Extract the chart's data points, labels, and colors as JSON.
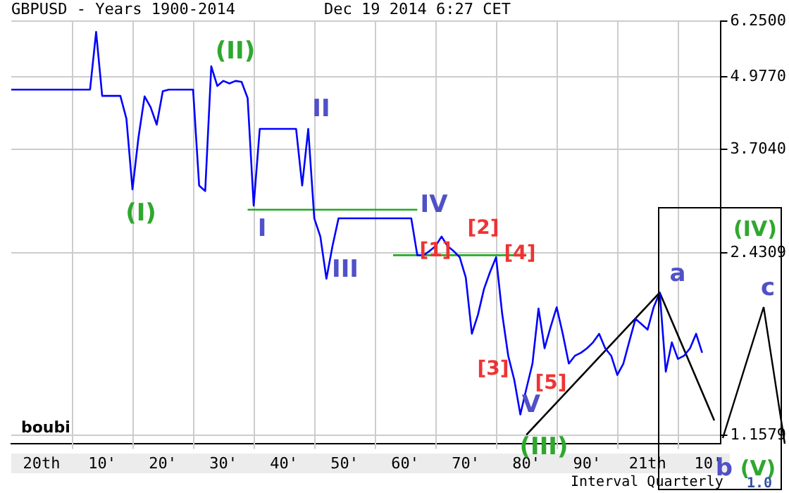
{
  "chart_data": {
    "type": "line",
    "title": "GBPUSD - Years 1900-2014",
    "subtitle": "Dec 19 2014 6:27 CET",
    "log": "y",
    "grid": true,
    "legend": false,
    "marker": "none",
    "line_style": "solid",
    "ylim": [
      1.12,
      6.25
    ],
    "yticks": [
      {
        "value": 6.25,
        "label": "6.2500"
      },
      {
        "value": 4.977,
        "label": "4.9770"
      },
      {
        "value": 3.704,
        "label": "3.7040"
      },
      {
        "value": 2.4309,
        "label": "2.4309"
      },
      {
        "value": 1.1579,
        "label": "1.1579"
      }
    ],
    "categories": [
      null,
      null,
      null,
      null,
      null,
      "20th",
      null,
      null,
      null,
      null,
      null,
      null,
      null,
      null,
      null,
      "10'",
      null,
      null,
      null,
      null,
      null,
      null,
      null,
      null,
      null,
      "20'",
      null,
      null,
      null,
      null,
      null,
      null,
      null,
      null,
      null,
      "30'",
      null,
      null,
      null,
      null,
      null,
      null,
      null,
      null,
      null,
      "40'",
      null,
      null,
      null,
      null,
      null,
      null,
      null,
      null,
      null,
      "50'",
      null,
      null,
      null,
      null,
      null,
      null,
      null,
      null,
      null,
      "60'",
      null,
      null,
      null,
      null,
      null,
      null,
      null,
      null,
      null,
      "70'",
      null,
      null,
      null,
      null,
      null,
      null,
      null,
      null,
      null,
      "80'",
      null,
      null,
      null,
      null,
      null,
      null,
      null,
      null,
      null,
      "90'",
      null,
      null,
      null,
      null,
      null,
      null,
      null,
      null,
      null,
      "21th",
      null,
      null,
      null,
      null,
      null,
      null,
      null,
      null,
      null,
      "10'",
      null,
      null
    ],
    "series": [
      {
        "color": "#0000ff",
        "values": [
          4.73,
          4.73,
          4.73,
          4.73,
          4.73,
          4.73,
          4.73,
          4.73,
          4.73,
          4.73,
          4.73,
          4.73,
          4.73,
          4.73,
          5.98,
          4.61,
          4.61,
          4.61,
          4.61,
          4.2,
          3.15,
          3.9,
          4.6,
          4.4,
          4.1,
          4.7,
          4.73,
          4.73,
          4.73,
          4.73,
          4.73,
          3.2,
          3.13,
          5.2,
          4.8,
          4.9,
          4.85,
          4.9,
          4.88,
          4.57,
          2.95,
          4.03,
          4.03,
          4.03,
          4.03,
          4.03,
          4.03,
          4.03,
          3.2,
          4.03,
          2.8,
          2.6,
          2.19,
          2.5,
          2.8,
          2.8,
          2.8,
          2.8,
          2.8,
          2.8,
          2.8,
          2.8,
          2.8,
          2.8,
          2.8,
          2.8,
          2.8,
          2.41,
          2.41,
          2.45,
          2.5,
          2.6,
          2.5,
          2.45,
          2.39,
          2.2,
          1.75,
          1.89,
          2.1,
          2.25,
          2.39,
          1.9,
          1.6,
          1.45,
          1.26,
          1.4,
          1.55,
          1.94,
          1.65,
          1.8,
          1.95,
          1.75,
          1.55,
          1.6,
          1.62,
          1.65,
          1.69,
          1.75,
          1.65,
          1.6,
          1.48,
          1.55,
          1.7,
          1.86,
          1.82,
          1.78,
          1.95,
          2.07,
          1.5,
          1.69,
          1.58,
          1.6,
          1.65,
          1.75,
          1.62,
          null,
          null,
          null
        ]
      },
      {
        "color": "#22aa22",
        "values": [
          null,
          null,
          null,
          null,
          null,
          null,
          null,
          null,
          null,
          null,
          null,
          null,
          null,
          null,
          null,
          null,
          null,
          null,
          null,
          null,
          null,
          null,
          null,
          null,
          null,
          null,
          null,
          null,
          null,
          null,
          null,
          null,
          null,
          null,
          null,
          null,
          null,
          null,
          null,
          2.9,
          null,
          null,
          null,
          null,
          null,
          null,
          null,
          null,
          null,
          null,
          null,
          null,
          null,
          null,
          null,
          null,
          null,
          null,
          null,
          null,
          null,
          null,
          null,
          null,
          null,
          null,
          null,
          2.9,
          null,
          null,
          null,
          null,
          null,
          null,
          null,
          null,
          null,
          null,
          null,
          null,
          null,
          null,
          null,
          null,
          null,
          null,
          null,
          null,
          null,
          null,
          null,
          null,
          null,
          null,
          null,
          null,
          null,
          null,
          null,
          null,
          null,
          null,
          null,
          null,
          null,
          null,
          null,
          null,
          null,
          null,
          null,
          null,
          null,
          null,
          null,
          null,
          null,
          null
        ]
      },
      {
        "color": "#22aa22",
        "values": [
          null,
          null,
          null,
          null,
          null,
          null,
          null,
          null,
          null,
          null,
          null,
          null,
          null,
          null,
          null,
          null,
          null,
          null,
          null,
          null,
          null,
          null,
          null,
          null,
          null,
          null,
          null,
          null,
          null,
          null,
          null,
          null,
          null,
          null,
          null,
          null,
          null,
          null,
          null,
          null,
          null,
          null,
          null,
          null,
          null,
          null,
          null,
          null,
          null,
          null,
          null,
          null,
          null,
          null,
          null,
          null,
          null,
          null,
          null,
          null,
          null,
          null,
          null,
          2.41,
          null,
          null,
          null,
          null,
          null,
          null,
          null,
          null,
          null,
          null,
          null,
          null,
          null,
          null,
          null,
          null,
          null,
          null,
          null,
          null,
          null,
          2.41,
          null,
          null,
          null,
          null,
          null,
          null,
          null,
          null,
          null,
          null,
          null,
          null,
          null,
          null,
          null,
          null,
          null,
          null,
          null,
          null,
          null,
          null,
          null,
          null,
          null,
          null,
          null,
          null,
          null,
          null,
          null,
          null
        ]
      },
      {
        "color": "#000000",
        "values": [
          null,
          null,
          null,
          null,
          null,
          null,
          null,
          null,
          null,
          null,
          null,
          null,
          null,
          null,
          null,
          null,
          null,
          null,
          null,
          null,
          null,
          null,
          null,
          null,
          null,
          null,
          null,
          null,
          null,
          null,
          null,
          null,
          null,
          null,
          null,
          null,
          null,
          null,
          null,
          null,
          null,
          null,
          null,
          null,
          null,
          null,
          null,
          null,
          null,
          null,
          null,
          null,
          null,
          null,
          null,
          null,
          null,
          null,
          null,
          null,
          null,
          null,
          null,
          null,
          null,
          null,
          null,
          null,
          null,
          null,
          null,
          null,
          null,
          null,
          null,
          null,
          null,
          null,
          null,
          null,
          null,
          null,
          null,
          null,
          null,
          1.16,
          null,
          null,
          null,
          null,
          null,
          null,
          null,
          null,
          null,
          null,
          null,
          null,
          null,
          null,
          null,
          null,
          null,
          null,
          null,
          null,
          null,
          2.07,
          null,
          null,
          null,
          null,
          null,
          null,
          null,
          null,
          1.23,
          null
        ]
      }
    ],
    "annotations": [
      "(I)",
      "(II)",
      "I",
      "II",
      "III",
      "IV",
      "[1]",
      "[2]",
      "[3]",
      "[4]",
      "[5]",
      "V",
      "(III)",
      "a",
      "b",
      "c",
      "(IV)",
      "(V)",
      "boubi",
      "Interval Quarterly",
      "1.0"
    ]
  }
}
